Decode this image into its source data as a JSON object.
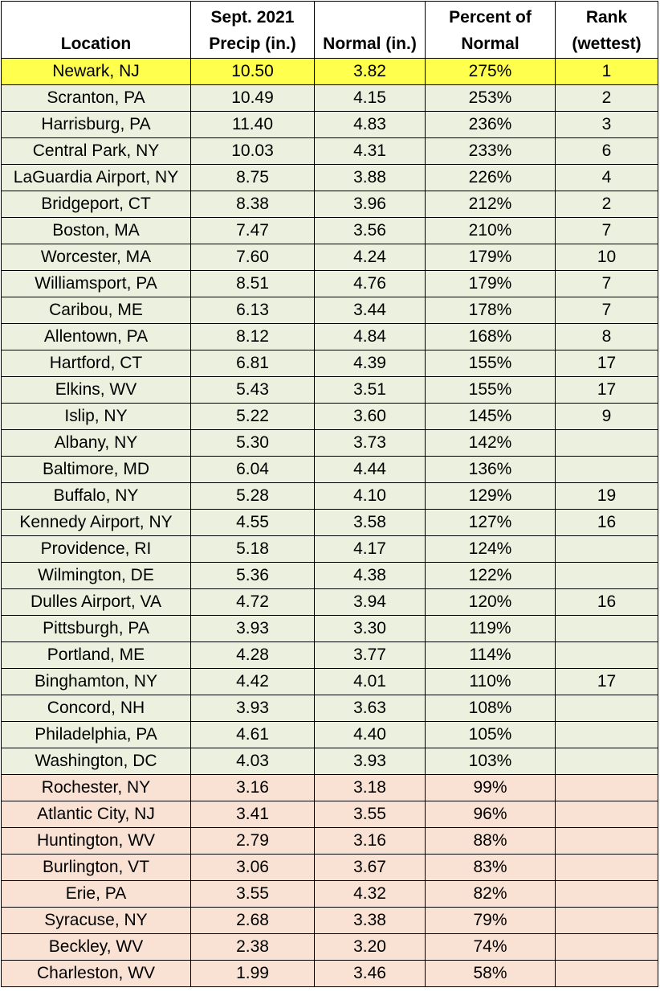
{
  "columns": [
    {
      "lines": [
        "Location"
      ]
    },
    {
      "lines": [
        "Sept. 2021",
        "Precip (in.)"
      ]
    },
    {
      "lines": [
        "Normal (in.)"
      ]
    },
    {
      "lines": [
        "Percent of",
        "Normal"
      ]
    },
    {
      "lines": [
        "Rank",
        "(wettest)"
      ]
    }
  ],
  "colors": {
    "highlight_row": "#ffff4d",
    "above_normal_row": "#ebf1de",
    "below_normal_row": "#f9e2d4",
    "header": "#ffffff",
    "border": "#000000"
  },
  "chart_data": {
    "type": "table",
    "headers": [
      "Location",
      "Sept. 2021 Precip (in.)",
      "Normal (in.)",
      "Percent of Normal",
      "Rank (wettest)"
    ],
    "rows": [
      {
        "location": "Newark, NJ",
        "precip": "10.50",
        "normal": "3.82",
        "percent": "275%",
        "rank": "1",
        "group": "highlight"
      },
      {
        "location": "Scranton, PA",
        "precip": "10.49",
        "normal": "4.15",
        "percent": "253%",
        "rank": "2",
        "group": "above"
      },
      {
        "location": "Harrisburg, PA",
        "precip": "11.40",
        "normal": "4.83",
        "percent": "236%",
        "rank": "3",
        "group": "above"
      },
      {
        "location": "Central Park, NY",
        "precip": "10.03",
        "normal": "4.31",
        "percent": "233%",
        "rank": "6",
        "group": "above"
      },
      {
        "location": "LaGuardia Airport, NY",
        "precip": "8.75",
        "normal": "3.88",
        "percent": "226%",
        "rank": "4",
        "group": "above"
      },
      {
        "location": "Bridgeport, CT",
        "precip": "8.38",
        "normal": "3.96",
        "percent": "212%",
        "rank": "2",
        "group": "above"
      },
      {
        "location": "Boston, MA",
        "precip": "7.47",
        "normal": "3.56",
        "percent": "210%",
        "rank": "7",
        "group": "above"
      },
      {
        "location": "Worcester, MA",
        "precip": "7.60",
        "normal": "4.24",
        "percent": "179%",
        "rank": "10",
        "group": "above"
      },
      {
        "location": "Williamsport, PA",
        "precip": "8.51",
        "normal": "4.76",
        "percent": "179%",
        "rank": "7",
        "group": "above"
      },
      {
        "location": "Caribou, ME",
        "precip": "6.13",
        "normal": "3.44",
        "percent": "178%",
        "rank": "7",
        "group": "above"
      },
      {
        "location": "Allentown, PA",
        "precip": "8.12",
        "normal": "4.84",
        "percent": "168%",
        "rank": "8",
        "group": "above"
      },
      {
        "location": "Hartford, CT",
        "precip": "6.81",
        "normal": "4.39",
        "percent": "155%",
        "rank": "17",
        "group": "above"
      },
      {
        "location": "Elkins, WV",
        "precip": "5.43",
        "normal": "3.51",
        "percent": "155%",
        "rank": "17",
        "group": "above"
      },
      {
        "location": "Islip, NY",
        "precip": "5.22",
        "normal": "3.60",
        "percent": "145%",
        "rank": "9",
        "group": "above"
      },
      {
        "location": "Albany, NY",
        "precip": "5.30",
        "normal": "3.73",
        "percent": "142%",
        "rank": "",
        "group": "above"
      },
      {
        "location": "Baltimore, MD",
        "precip": "6.04",
        "normal": "4.44",
        "percent": "136%",
        "rank": "",
        "group": "above"
      },
      {
        "location": "Buffalo, NY",
        "precip": "5.28",
        "normal": "4.10",
        "percent": "129%",
        "rank": "19",
        "group": "above"
      },
      {
        "location": "Kennedy Airport, NY",
        "precip": "4.55",
        "normal": "3.58",
        "percent": "127%",
        "rank": "16",
        "group": "above"
      },
      {
        "location": "Providence, RI",
        "precip": "5.18",
        "normal": "4.17",
        "percent": "124%",
        "rank": "",
        "group": "above"
      },
      {
        "location": "Wilmington, DE",
        "precip": "5.36",
        "normal": "4.38",
        "percent": "122%",
        "rank": "",
        "group": "above"
      },
      {
        "location": "Dulles Airport, VA",
        "precip": "4.72",
        "normal": "3.94",
        "percent": "120%",
        "rank": "16",
        "group": "above"
      },
      {
        "location": "Pittsburgh, PA",
        "precip": "3.93",
        "normal": "3.30",
        "percent": "119%",
        "rank": "",
        "group": "above"
      },
      {
        "location": "Portland, ME",
        "precip": "4.28",
        "normal": "3.77",
        "percent": "114%",
        "rank": "",
        "group": "above"
      },
      {
        "location": "Binghamton, NY",
        "precip": "4.42",
        "normal": "4.01",
        "percent": "110%",
        "rank": "17",
        "group": "above"
      },
      {
        "location": "Concord, NH",
        "precip": "3.93",
        "normal": "3.63",
        "percent": "108%",
        "rank": "",
        "group": "above"
      },
      {
        "location": "Philadelphia, PA",
        "precip": "4.61",
        "normal": "4.40",
        "percent": "105%",
        "rank": "",
        "group": "above"
      },
      {
        "location": "Washington, DC",
        "precip": "4.03",
        "normal": "3.93",
        "percent": "103%",
        "rank": "",
        "group": "above"
      },
      {
        "location": "Rochester, NY",
        "precip": "3.16",
        "normal": "3.18",
        "percent": "99%",
        "rank": "",
        "group": "below"
      },
      {
        "location": "Atlantic City, NJ",
        "precip": "3.41",
        "normal": "3.55",
        "percent": "96%",
        "rank": "",
        "group": "below"
      },
      {
        "location": "Huntington, WV",
        "precip": "2.79",
        "normal": "3.16",
        "percent": "88%",
        "rank": "",
        "group": "below"
      },
      {
        "location": "Burlington, VT",
        "precip": "3.06",
        "normal": "3.67",
        "percent": "83%",
        "rank": "",
        "group": "below"
      },
      {
        "location": "Erie, PA",
        "precip": "3.55",
        "normal": "4.32",
        "percent": "82%",
        "rank": "",
        "group": "below"
      },
      {
        "location": "Syracuse, NY",
        "precip": "2.68",
        "normal": "3.38",
        "percent": "79%",
        "rank": "",
        "group": "below"
      },
      {
        "location": "Beckley, WV",
        "precip": "2.38",
        "normal": "3.20",
        "percent": "74%",
        "rank": "",
        "group": "below"
      },
      {
        "location": "Charleston, WV",
        "precip": "1.99",
        "normal": "3.46",
        "percent": "58%",
        "rank": "",
        "group": "below"
      }
    ]
  }
}
